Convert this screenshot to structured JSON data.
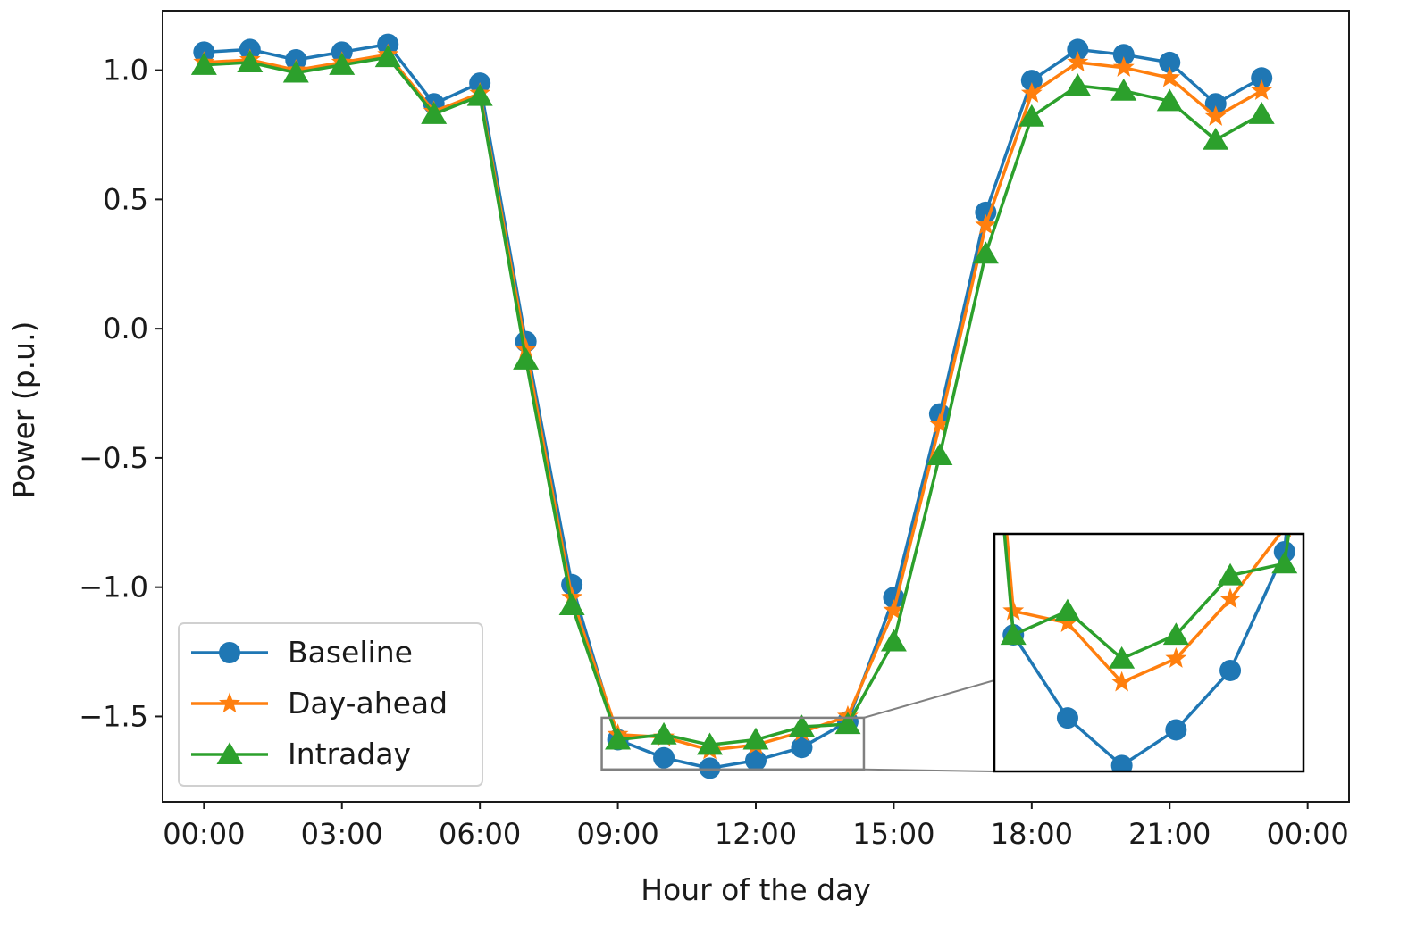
{
  "chart_data": {
    "type": "line",
    "title": "",
    "xlabel": "Hour of the day",
    "ylabel": "Power (p.u.)",
    "xlim": [
      -0.9,
      24.9
    ],
    "ylim": [
      -1.83,
      1.23
    ],
    "xticks": [
      {
        "value": 0,
        "label": "00:00"
      },
      {
        "value": 3,
        "label": "03:00"
      },
      {
        "value": 6,
        "label": "06:00"
      },
      {
        "value": 9,
        "label": "09:00"
      },
      {
        "value": 12,
        "label": "12:00"
      },
      {
        "value": 15,
        "label": "15:00"
      },
      {
        "value": 18,
        "label": "18:00"
      },
      {
        "value": 21,
        "label": "21:00"
      },
      {
        "value": 24,
        "label": "00:00"
      }
    ],
    "yticks": [
      {
        "value": 1.0,
        "label": "1.0"
      },
      {
        "value": 0.5,
        "label": "0.5"
      },
      {
        "value": 0.0,
        "label": "0.0"
      },
      {
        "value": -0.5,
        "label": "−0.5"
      },
      {
        "value": -1.0,
        "label": "−1.0"
      },
      {
        "value": -1.5,
        "label": "−1.5"
      }
    ],
    "x": [
      0,
      1,
      2,
      3,
      4,
      5,
      6,
      7,
      8,
      9,
      10,
      11,
      12,
      13,
      14,
      15,
      16,
      17,
      18,
      19,
      20,
      21,
      22,
      23
    ],
    "series": [
      {
        "name": "Baseline",
        "color": "#1f77b4",
        "marker": "circle",
        "values": [
          1.07,
          1.08,
          1.04,
          1.07,
          1.1,
          0.87,
          0.95,
          -0.05,
          -0.99,
          -1.59,
          -1.66,
          -1.7,
          -1.67,
          -1.62,
          -1.52,
          -1.04,
          -0.33,
          0.45,
          0.96,
          1.08,
          1.06,
          1.03,
          0.87,
          0.97
        ]
      },
      {
        "name": "Day-ahead",
        "color": "#ff7f0e",
        "marker": "star",
        "values": [
          1.03,
          1.04,
          1.0,
          1.03,
          1.06,
          0.84,
          0.91,
          -0.08,
          -1.04,
          -1.57,
          -1.58,
          -1.63,
          -1.61,
          -1.56,
          -1.5,
          -1.09,
          -0.37,
          0.4,
          0.91,
          1.03,
          1.01,
          0.97,
          0.82,
          0.92
        ]
      },
      {
        "name": "Intraday",
        "color": "#2ca02c",
        "marker": "triangle",
        "values": [
          1.02,
          1.03,
          0.99,
          1.02,
          1.05,
          0.83,
          0.9,
          -0.12,
          -1.07,
          -1.59,
          -1.57,
          -1.61,
          -1.59,
          -1.54,
          -1.53,
          -1.21,
          -0.49,
          0.29,
          0.82,
          0.94,
          0.92,
          0.88,
          0.73,
          0.83
        ]
      }
    ],
    "inset": {
      "xlim": [
        8.65,
        14.35
      ],
      "ylim": [
        -1.705,
        -1.505
      ]
    },
    "legend_position": "lower-left"
  }
}
